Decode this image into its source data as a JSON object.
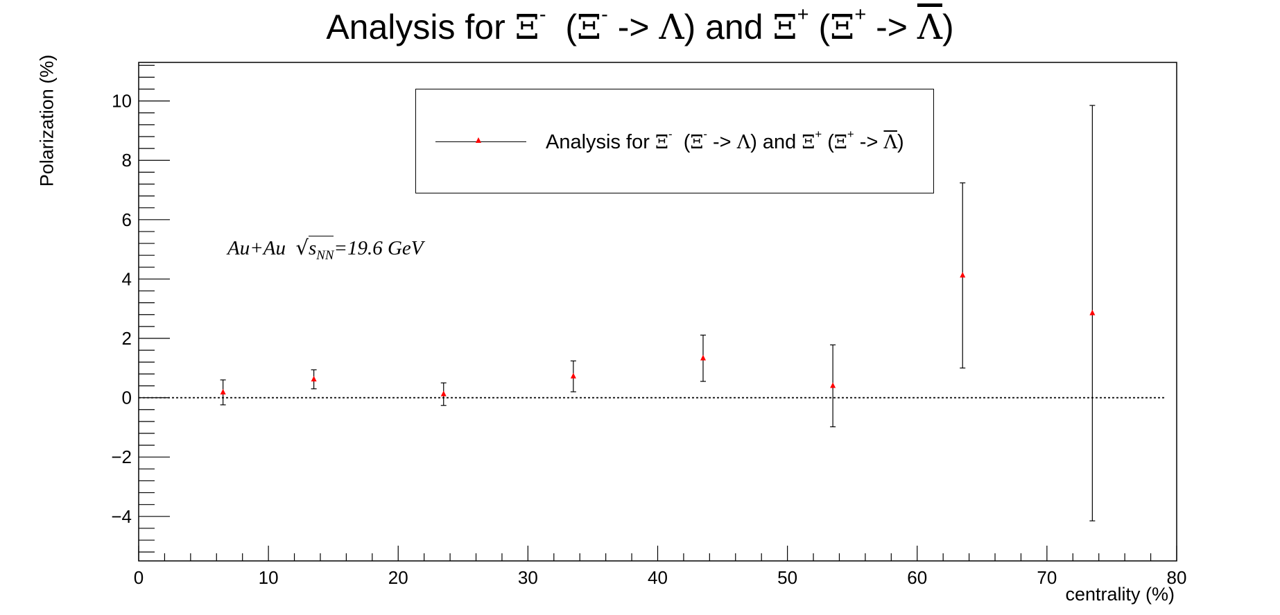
{
  "chart_data": {
    "type": "scatter",
    "title": "Analysis for Ξ-  (Ξ- -> Λ) and Ξ+ (Ξ+ -> Λ)",
    "title_parts": {
      "lead": "Analysis for ",
      "xi": "Ξ",
      "minus": "-",
      "plus": "+",
      "arrow": " -> ",
      "lambda": "Λ",
      "and": ") and ",
      "open": "(",
      "close": ")"
    },
    "xlabel": "centrality (%)",
    "ylabel": "Polarization (%)",
    "xlim": [
      0,
      80
    ],
    "ylim": [
      -5.5,
      11.3
    ],
    "xticks": [
      0,
      10,
      20,
      30,
      40,
      50,
      60,
      70,
      80
    ],
    "yticks": [
      -4,
      -2,
      0,
      2,
      4,
      6,
      8,
      10
    ],
    "ytick_labels": [
      "−4",
      "−2",
      "0",
      "2",
      "4",
      "6",
      "8",
      "10"
    ],
    "reference_line": {
      "y": 0,
      "style": "dotted"
    },
    "annotation": {
      "system": "Au+Au",
      "sqrt": "√",
      "s": "s",
      "sub": "NN",
      "energy": "=19.6 GeV"
    },
    "legend": {
      "placement": "top-center"
    },
    "series": [
      {
        "name": "Analysis for Ξ-  (Ξ- -> Λ) and Ξ+ (Ξ+ -> Λ)",
        "color": "#ff0000",
        "marker": "triangle",
        "points": [
          {
            "x": 6.5,
            "y": 0.18,
            "err": 0.42
          },
          {
            "x": 13.5,
            "y": 0.62,
            "err": 0.32
          },
          {
            "x": 23.5,
            "y": 0.12,
            "err": 0.38
          },
          {
            "x": 33.5,
            "y": 0.72,
            "err": 0.52
          },
          {
            "x": 43.5,
            "y": 1.33,
            "err": 0.78
          },
          {
            "x": 53.5,
            "y": 0.4,
            "err": 1.38
          },
          {
            "x": 63.5,
            "y": 4.12,
            "err": 3.12
          },
          {
            "x": 73.5,
            "y": 2.85,
            "err": 7.0
          }
        ]
      }
    ]
  }
}
